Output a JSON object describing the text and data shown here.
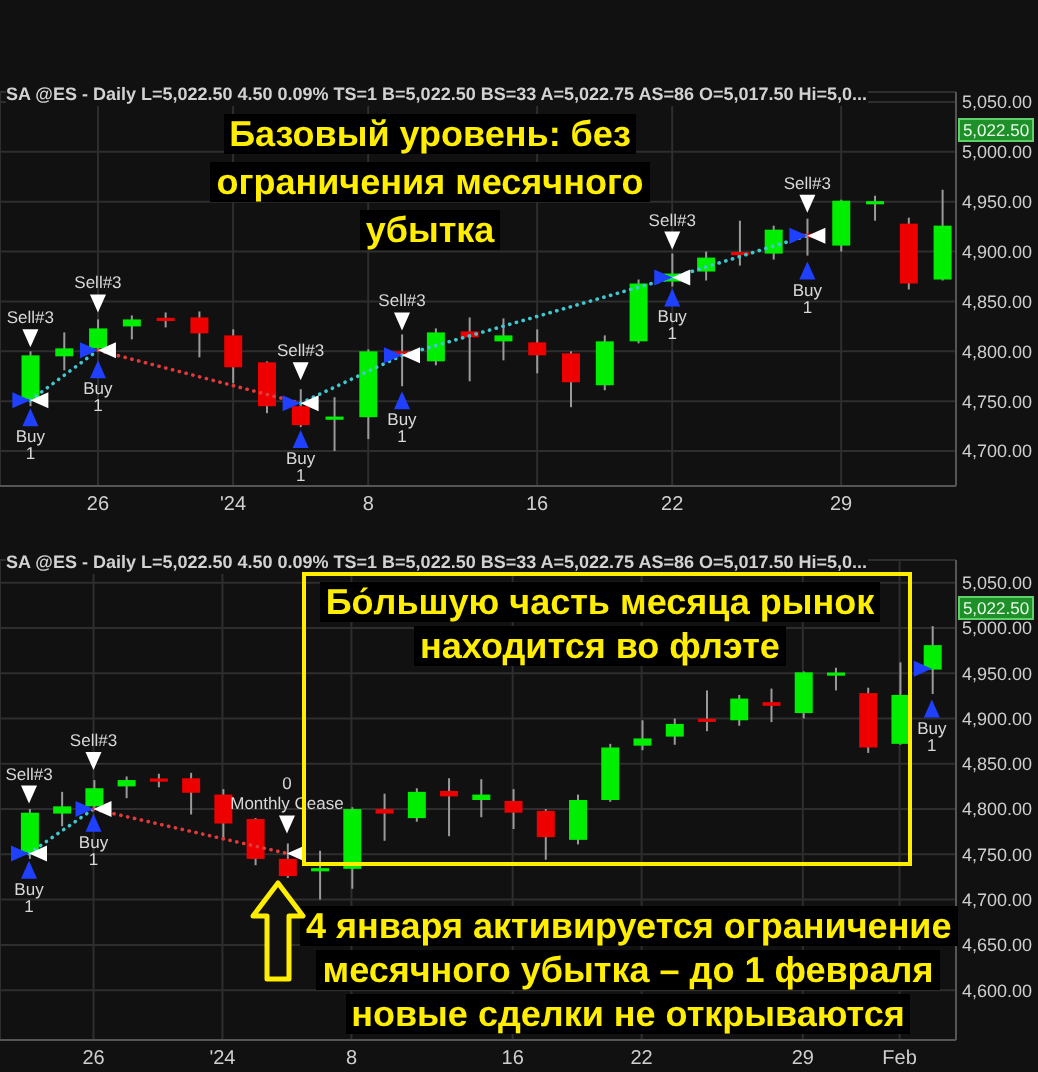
{
  "chart_data": [
    {
      "type": "candlestick",
      "subtitle": "SA @ES - Daily L=5,022.50 4.50 0.09% TS=1 B=5,022.50 BS=33 A=5,022.75 AS=86 O=5,017.50 Hi=5,0...",
      "categories": [
        null,
        null,
        "26",
        null,
        null,
        null,
        "'24",
        null,
        null,
        null,
        "8",
        null,
        null,
        null,
        null,
        "16",
        null,
        null,
        null,
        "22",
        null,
        null,
        null,
        null,
        "29",
        null,
        null,
        null
      ],
      "ohlc": [
        [
          4752,
          4800,
          4745,
          4796
        ],
        [
          4795,
          4819,
          4781,
          4803
        ],
        [
          4803,
          4832,
          4800,
          4823
        ],
        [
          4825,
          4836,
          4812,
          4832
        ],
        [
          4833,
          4839,
          4824,
          4831
        ],
        [
          4834,
          4840,
          4794,
          4818
        ],
        [
          4816,
          4822,
          4768,
          4784
        ],
        [
          4789,
          4790,
          4738,
          4745
        ],
        [
          4745,
          4762,
          4724,
          4726
        ],
        [
          4732,
          4754,
          4700,
          4734
        ],
        [
          4734,
          4802,
          4712,
          4800
        ],
        [
          4800,
          4817,
          4765,
          4795
        ],
        [
          4790,
          4823,
          4786,
          4819
        ],
        [
          4820,
          4834,
          4770,
          4814
        ],
        [
          4810,
          4833,
          4791,
          4816
        ],
        [
          4809,
          4822,
          4778,
          4796
        ],
        [
          4798,
          4800,
          4744,
          4769
        ],
        [
          4766,
          4816,
          4761,
          4810
        ],
        [
          4810,
          4872,
          4808,
          4868
        ],
        [
          4870,
          4898,
          4865,
          4878
        ],
        [
          4880,
          4900,
          4871,
          4894
        ],
        [
          4899,
          4931,
          4886,
          4897
        ],
        [
          4898,
          4926,
          4892,
          4922
        ],
        [
          4918,
          4933,
          4896,
          4914
        ],
        [
          4906,
          4952,
          4900,
          4951
        ],
        [
          4948,
          4956,
          4931,
          4950
        ],
        [
          4928,
          4934,
          4862,
          4868
        ],
        [
          4872,
          4962,
          4871,
          4926
        ]
      ],
      "colors": [
        "#00ee00",
        "#00ee00",
        "#00ee00",
        "#00ee00",
        "#ee0000",
        "#ee0000",
        "#ee0000",
        "#ee0000",
        "#ee0000",
        "#00ee00",
        "#00ee00",
        "#ee0000",
        "#00ee00",
        "#ee0000",
        "#00ee00",
        "#ee0000",
        "#ee0000",
        "#00ee00",
        "#00ee00",
        "#00ee00",
        "#00ee00",
        "#ee0000",
        "#00ee00",
        "#ee0000",
        "#00ee00",
        "#00ee00",
        "#ee0000",
        "#00ee00"
      ],
      "ylim": [
        4665,
        5060
      ],
      "yticks": [
        {
          "value": 4700,
          "label": "4,700.00"
        },
        {
          "value": 4750,
          "label": "4,750.00"
        },
        {
          "value": 4800,
          "label": "4,800.00"
        },
        {
          "value": 4850,
          "label": "4,850.00"
        },
        {
          "value": 4900,
          "label": "4,900.00"
        },
        {
          "value": 4950,
          "label": "4,950.00"
        },
        {
          "value": 5000,
          "label": "5,000.00"
        },
        {
          "value": 5050,
          "label": "5,050.00"
        }
      ],
      "grid": true,
      "annotations": [
        "Базовый уровень: без ограничения месячного убытка",
        {
          "text": "5,022.50",
          "y": 5022.5
        }
      ],
      "series": [
        {
          "type": "line",
          "color": "#3fc8d0",
          "line_style": "dotted",
          "values": [
            4751,
            null,
            4801,
            null,
            null,
            null,
            null,
            null,
            null,
            null,
            null,
            null,
            null,
            null,
            null,
            null,
            null,
            null,
            null,
            null,
            null,
            null,
            null,
            null,
            null,
            null,
            null,
            null
          ]
        },
        {
          "type": "line",
          "color": "#e03a3a",
          "line_style": "dotted",
          "values": [
            null,
            null,
            4801,
            null,
            null,
            null,
            null,
            null,
            4748,
            null,
            null,
            null,
            null,
            null,
            null,
            null,
            null,
            null,
            null,
            null,
            null,
            null,
            null,
            null,
            null,
            null,
            null,
            null
          ]
        },
        {
          "type": "line",
          "color": "#3fc8d0",
          "line_style": "dotted",
          "values": [
            null,
            null,
            null,
            null,
            null,
            null,
            null,
            null,
            4748,
            null,
            null,
            4796,
            null,
            null,
            null,
            null,
            null,
            null,
            null,
            null,
            null,
            null,
            null,
            null,
            null,
            null,
            null,
            null
          ]
        },
        {
          "type": "line",
          "color": "#3fc8d0",
          "line_style": "dotted",
          "values": [
            null,
            null,
            null,
            null,
            null,
            null,
            null,
            null,
            null,
            null,
            null,
            4796,
            null,
            null,
            null,
            null,
            null,
            null,
            null,
            4874,
            null,
            null,
            null,
            null,
            null,
            null,
            null,
            null
          ]
        },
        {
          "type": "line",
          "color": "#3fc8d0",
          "line_style": "dotted",
          "values": [
            null,
            null,
            null,
            null,
            null,
            null,
            null,
            null,
            null,
            null,
            null,
            null,
            null,
            null,
            null,
            null,
            null,
            null,
            null,
            4874,
            null,
            null,
            null,
            4916,
            null,
            null,
            null,
            null
          ]
        },
        {
          "type": "scatter",
          "color": "#2040ff",
          "marker": "triangle",
          "values": [
            4751,
            null,
            4801,
            null,
            null,
            null,
            null,
            null,
            4748,
            null,
            null,
            4796,
            null,
            null,
            null,
            null,
            null,
            null,
            null,
            4874,
            null,
            null,
            null,
            4916,
            null,
            null,
            null,
            null
          ]
        },
        {
          "type": "scatter",
          "color": "#ffffff",
          "marker": "triangle",
          "values": [
            4751,
            null,
            4801,
            null,
            null,
            null,
            null,
            null,
            4748,
            null,
            null,
            4796,
            null,
            null,
            null,
            null,
            null,
            null,
            null,
            4874,
            null,
            null,
            null,
            4916,
            null,
            null,
            null,
            null
          ]
        },
        {
          "type": "scatter",
          "name": "Sell#3",
          "color": "#ffffff",
          "marker": "triangle",
          "values": [
            4813,
            null,
            4848,
            null,
            null,
            null,
            null,
            null,
            4780,
            null,
            null,
            4830,
            null,
            null,
            null,
            null,
            null,
            null,
            null,
            4911,
            null,
            null,
            null,
            4948,
            null,
            null,
            null,
            null
          ]
        },
        {
          "type": "scatter",
          "name": "Buy 1",
          "color": "#2040ff",
          "marker": "triangle",
          "values": [
            4734,
            null,
            4782,
            null,
            null,
            null,
            null,
            null,
            4712,
            null,
            null,
            4751,
            null,
            null,
            null,
            null,
            null,
            null,
            null,
            4854,
            null,
            null,
            null,
            4881,
            null,
            null,
            null,
            null
          ]
        }
      ]
    },
    {
      "type": "candlestick",
      "subtitle": "SA @ES - Daily L=5,022.50 4.50 0.09% TS=1 B=5,022.50 BS=33 A=5,022.75 AS=86 O=5,017.50 Hi=5,0...",
      "categories": [
        null,
        null,
        "26",
        null,
        null,
        null,
        "'24",
        null,
        null,
        null,
        "8",
        null,
        null,
        null,
        null,
        "16",
        null,
        null,
        null,
        "22",
        null,
        null,
        null,
        null,
        "29",
        null,
        null,
        "Feb",
        null
      ],
      "ohlc": [
        [
          4752,
          4800,
          4745,
          4796
        ],
        [
          4795,
          4819,
          4781,
          4803
        ],
        [
          4803,
          4832,
          4800,
          4823
        ],
        [
          4825,
          4836,
          4812,
          4832
        ],
        [
          4833,
          4839,
          4824,
          4831
        ],
        [
          4834,
          4840,
          4794,
          4818
        ],
        [
          4816,
          4822,
          4768,
          4784
        ],
        [
          4789,
          4790,
          4738,
          4745
        ],
        [
          4745,
          4762,
          4724,
          4726
        ],
        [
          4732,
          4754,
          4700,
          4734
        ],
        [
          4734,
          4802,
          4712,
          4800
        ],
        [
          4800,
          4817,
          4765,
          4795
        ],
        [
          4790,
          4823,
          4786,
          4819
        ],
        [
          4820,
          4834,
          4770,
          4814
        ],
        [
          4810,
          4833,
          4791,
          4816
        ],
        [
          4809,
          4822,
          4778,
          4796
        ],
        [
          4798,
          4800,
          4744,
          4769
        ],
        [
          4766,
          4816,
          4761,
          4810
        ],
        [
          4810,
          4872,
          4808,
          4868
        ],
        [
          4870,
          4898,
          4865,
          4878
        ],
        [
          4880,
          4900,
          4871,
          4894
        ],
        [
          4899,
          4931,
          4886,
          4897
        ],
        [
          4898,
          4926,
          4892,
          4922
        ],
        [
          4918,
          4933,
          4896,
          4914
        ],
        [
          4906,
          4952,
          4900,
          4951
        ],
        [
          4948,
          4956,
          4931,
          4950
        ],
        [
          4928,
          4934,
          4862,
          4868
        ],
        [
          4872,
          4962,
          4871,
          4926
        ],
        [
          4954,
          5002,
          4927,
          4981
        ]
      ],
      "colors": [
        "#00ee00",
        "#00ee00",
        "#00ee00",
        "#00ee00",
        "#ee0000",
        "#ee0000",
        "#ee0000",
        "#ee0000",
        "#ee0000",
        "#00ee00",
        "#00ee00",
        "#ee0000",
        "#00ee00",
        "#ee0000",
        "#00ee00",
        "#ee0000",
        "#ee0000",
        "#00ee00",
        "#00ee00",
        "#00ee00",
        "#00ee00",
        "#ee0000",
        "#00ee00",
        "#ee0000",
        "#00ee00",
        "#00ee00",
        "#ee0000",
        "#00ee00",
        "#00ee00"
      ],
      "ylim": [
        4545,
        5075
      ],
      "yticks": [
        {
          "value": 4600,
          "label": "4,600.00"
        },
        {
          "value": 4650,
          "label": "4,650.00"
        },
        {
          "value": 4700,
          "label": "4,700.00"
        },
        {
          "value": 4750,
          "label": "4,750.00"
        },
        {
          "value": 4800,
          "label": "4,800.00"
        },
        {
          "value": 4850,
          "label": "4,850.00"
        },
        {
          "value": 4900,
          "label": "4,900.00"
        },
        {
          "value": 4950,
          "label": "4,950.00"
        },
        {
          "value": 5000,
          "label": "5,000.00"
        },
        {
          "value": 5050,
          "label": "5,050.00"
        }
      ],
      "grid": true,
      "annotations": [
        "Бо́льшую часть месяца рынок находится во флэте",
        "4 января активируется ограничение месячного убытка – до 1 февраля новые сделки не открываются",
        {
          "text": "5,022.50",
          "y": 5022.5
        }
      ],
      "series": [
        {
          "type": "line",
          "color": "#3fc8d0",
          "line_style": "dotted",
          "values": [
            4751,
            null,
            4800,
            null,
            null,
            null,
            null,
            null,
            null,
            null,
            null,
            null,
            null,
            null,
            null,
            null,
            null,
            null,
            null,
            null,
            null,
            null,
            null,
            null,
            null,
            null,
            null,
            null,
            null
          ]
        },
        {
          "type": "line",
          "color": "#e03a3a",
          "line_style": "dotted",
          "values": [
            null,
            null,
            4800,
            null,
            null,
            null,
            null,
            null,
            4751,
            null,
            null,
            null,
            null,
            null,
            null,
            null,
            null,
            null,
            null,
            null,
            null,
            null,
            null,
            null,
            null,
            null,
            null,
            null,
            null
          ]
        },
        {
          "type": "scatter",
          "color": "#2040ff",
          "marker": "triangle",
          "values": [
            4751,
            null,
            4800,
            null,
            null,
            null,
            null,
            null,
            null,
            null,
            null,
            null,
            null,
            null,
            null,
            null,
            null,
            null,
            null,
            null,
            null,
            null,
            null,
            null,
            null,
            null,
            null,
            null,
            4955
          ]
        },
        {
          "type": "scatter",
          "color": "#ffffff",
          "marker": "triangle",
          "values": [
            4751,
            null,
            4800,
            null,
            null,
            null,
            null,
            null,
            4751,
            null,
            null,
            null,
            null,
            null,
            null,
            null,
            null,
            null,
            null,
            null,
            null,
            null,
            null,
            null,
            null,
            null,
            null,
            null,
            null
          ]
        },
        {
          "type": "scatter",
          "name": "Sell#3",
          "color": "#ffffff",
          "marker": "triangle",
          "values": [
            4816,
            null,
            4853,
            null,
            null,
            null,
            null,
            null,
            null,
            null,
            null,
            null,
            null,
            null,
            null,
            null,
            null,
            null,
            null,
            null,
            null,
            null,
            null,
            null,
            null,
            null,
            null,
            null,
            null
          ]
        },
        {
          "type": "scatter",
          "name": "0 Monthly Cease",
          "color": "#ffffff",
          "marker": "triangle",
          "values": [
            null,
            null,
            null,
            null,
            null,
            null,
            null,
            null,
            4783,
            null,
            null,
            null,
            null,
            null,
            null,
            null,
            null,
            null,
            null,
            null,
            null,
            null,
            null,
            null,
            null,
            null,
            null,
            null,
            null
          ]
        },
        {
          "type": "scatter",
          "name": "Buy 1",
          "color": "#2040ff",
          "marker": "triangle",
          "values": [
            4733,
            null,
            4785,
            null,
            null,
            null,
            null,
            null,
            null,
            null,
            null,
            null,
            null,
            null,
            null,
            null,
            null,
            null,
            null,
            null,
            null,
            null,
            null,
            null,
            null,
            null,
            null,
            null,
            4911
          ]
        }
      ]
    }
  ]
}
